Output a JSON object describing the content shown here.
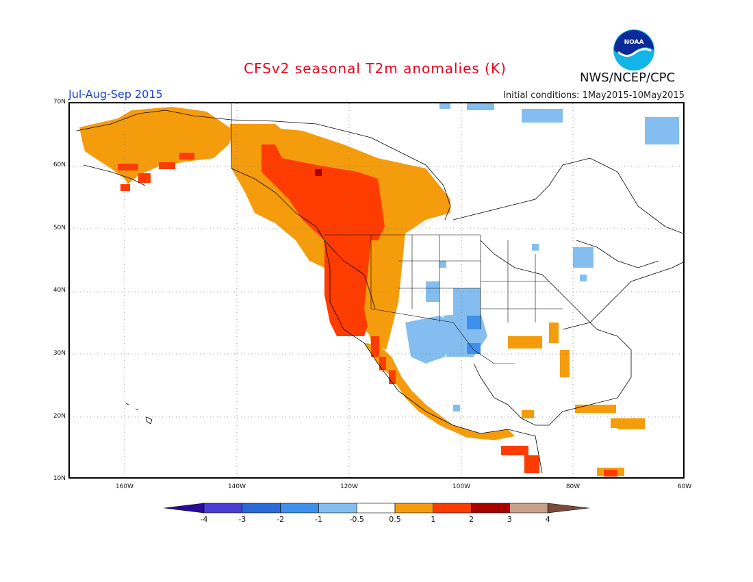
{
  "header": {
    "title": "CFSv2 seasonal T2m anomalies (K)",
    "period": "Jul-Aug-Sep 2015",
    "initial_conditions": "Initial conditions: 1May2015-10May2015",
    "agency": "NWS/NCEP/CPC",
    "logo_text": "NOAA"
  },
  "map": {
    "lat_labels": [
      "70N",
      "60N",
      "50N",
      "40N",
      "30N",
      "20N",
      "10N"
    ],
    "lon_labels": [
      "160W",
      "140W",
      "120W",
      "100W",
      "80W",
      "60W"
    ],
    "lat_range": [
      10,
      70
    ],
    "lon_range": [
      -170,
      -60
    ],
    "grid": "dotted"
  },
  "colorbar": {
    "labels": [
      "-4",
      "-3",
      "-2",
      "-1",
      "-0.5",
      "0.5",
      "1",
      "2",
      "3",
      "4"
    ],
    "colors": [
      "#2a0a9c",
      "#4a3ed6",
      "#2a6ad8",
      "#3f8fec",
      "#84bdf0",
      "#ffffff",
      "#f59c0d",
      "#ff3c00",
      "#a80000",
      "#c9a08b",
      "#7a4a3c"
    ]
  },
  "chart_data": {
    "type": "heatmap",
    "title": "CFSv2 seasonal T2m anomalies (K)",
    "period": "Jul-Aug-Sep 2015",
    "levels": [
      -4,
      -3,
      -2,
      -1,
      -0.5,
      0.5,
      1,
      2,
      3,
      4
    ],
    "regions": [
      {
        "name": "Alaska",
        "anomaly_range": "0.5 to 1"
      },
      {
        "name": "Western Canada",
        "anomaly_range": "1 to 2"
      },
      {
        "name": "US West Coast",
        "anomaly_range": "1 to 2"
      },
      {
        "name": "Central US",
        "anomaly_range": "-1 to -0.5"
      },
      {
        "name": "Central America",
        "anomaly_range": "1 to 3"
      }
    ]
  }
}
